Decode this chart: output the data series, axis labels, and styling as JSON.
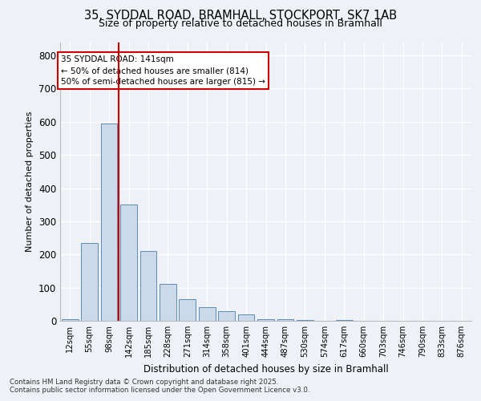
{
  "title_line1": "35, SYDDAL ROAD, BRAMHALL, STOCKPORT, SK7 1AB",
  "title_line2": "Size of property relative to detached houses in Bramhall",
  "xlabel": "Distribution of detached houses by size in Bramhall",
  "ylabel": "Number of detached properties",
  "categories": [
    "12sqm",
    "55sqm",
    "98sqm",
    "142sqm",
    "185sqm",
    "228sqm",
    "271sqm",
    "314sqm",
    "358sqm",
    "401sqm",
    "444sqm",
    "487sqm",
    "530sqm",
    "574sqm",
    "617sqm",
    "660sqm",
    "703sqm",
    "746sqm",
    "790sqm",
    "833sqm",
    "876sqm"
  ],
  "values": [
    5,
    235,
    595,
    350,
    210,
    110,
    65,
    40,
    30,
    20,
    5,
    5,
    2,
    0,
    2,
    0,
    0,
    0,
    0,
    0,
    0
  ],
  "bar_color": "#ccd9e8",
  "bar_edge_color": "#5b8db8",
  "annotation_label": "35 SYDDAL ROAD: 141sqm",
  "annotation_line2": "← 50% of detached houses are smaller (814)",
  "annotation_line3": "50% of semi-detached houses are larger (815) →",
  "ylim": [
    0,
    840
  ],
  "yticks": [
    0,
    100,
    200,
    300,
    400,
    500,
    600,
    700,
    800
  ],
  "background_color": "#eef2f7",
  "plot_bg_color": "#eef2f7",
  "grid_color": "#ffffff",
  "footnote_line1": "Contains HM Land Registry data © Crown copyright and database right 2025.",
  "footnote_line2": "Contains public sector information licensed under the Open Government Licence v3.0."
}
